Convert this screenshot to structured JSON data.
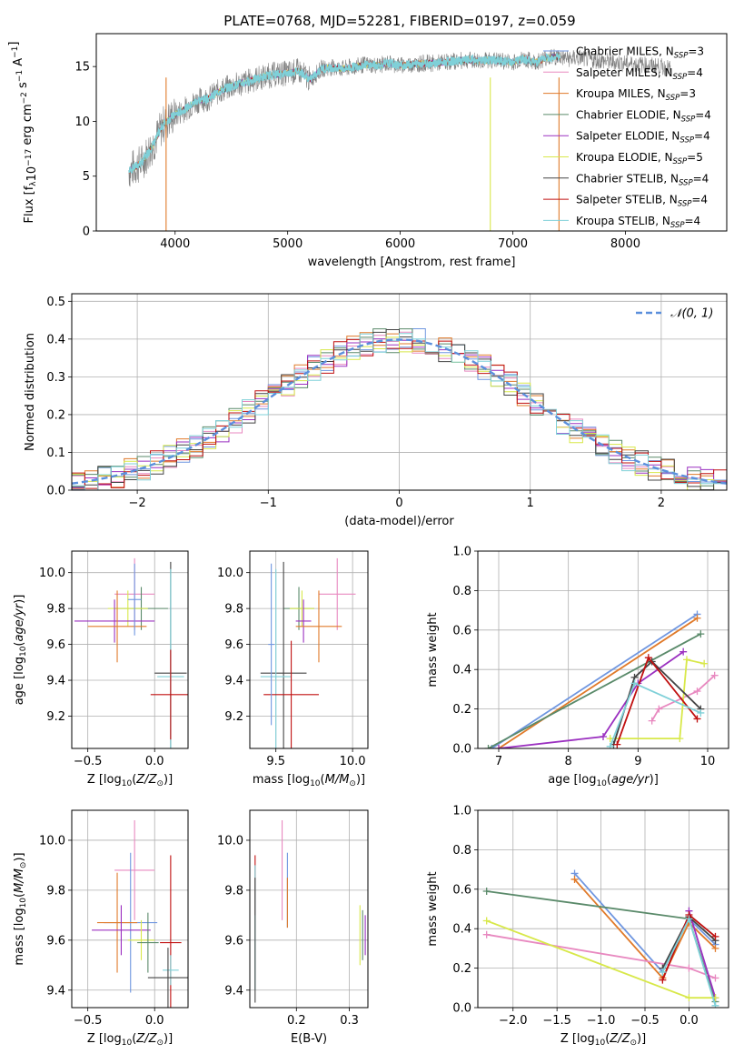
{
  "figure": {
    "title": "PLATE=0768, MJD=52281, FIBERID=0197, z=0.059"
  },
  "models": [
    {
      "name": "Chabrier MILES, N",
      "sub": "SSP",
      "suffix": "=3",
      "color": "#6f96e0"
    },
    {
      "name": "Salpeter MILES, N",
      "sub": "SSP",
      "suffix": "=4",
      "color": "#e889c0"
    },
    {
      "name": "Kroupa MILES, N",
      "sub": "SSP",
      "suffix": "=3",
      "color": "#e07a2a"
    },
    {
      "name": "Chabrier ELODIE, N",
      "sub": "SSP",
      "suffix": "=4",
      "color": "#5a8a6a"
    },
    {
      "name": "Salpeter ELODIE, N",
      "sub": "SSP",
      "suffix": "=4",
      "color": "#9b30c0"
    },
    {
      "name": "Kroupa ELODIE, N",
      "sub": "SSP",
      "suffix": "=5",
      "color": "#d8e84a"
    },
    {
      "name": "Chabrier STELIB, N",
      "sub": "SSP",
      "suffix": "=4",
      "color": "#444444"
    },
    {
      "name": "Salpeter STELIB, N",
      "sub": "SSP",
      "suffix": "=4",
      "color": "#c01010"
    },
    {
      "name": "Kroupa STELIB, N",
      "sub": "SSP",
      "suffix": "=4",
      "color": "#7fd0d8"
    }
  ],
  "chart_data": [
    {
      "id": "spectrum",
      "type": "line",
      "xlabel": "wavelength [Angstrom, rest frame]",
      "ylabel": "Flux [f_λ10^-17 erg cm^-2 s^-1 A^-1]",
      "xlim": [
        3300,
        8900
      ],
      "ylim": [
        0,
        18
      ],
      "xticks": [
        4000,
        5000,
        6000,
        7000,
        8000
      ],
      "yticks": [
        0,
        5,
        10,
        15
      ],
      "grid": false,
      "legend": "right",
      "observed_color": "#808080",
      "model_color": "#7fd0d8",
      "continuum": [
        [
          3590,
          5.5
        ],
        [
          3700,
          6.2
        ],
        [
          3800,
          7.8
        ],
        [
          3900,
          9.8
        ],
        [
          4000,
          10.6
        ],
        [
          4100,
          11.2
        ],
        [
          4200,
          11.9
        ],
        [
          4300,
          12.1
        ],
        [
          4400,
          12.8
        ],
        [
          4500,
          13.2
        ],
        [
          4600,
          13.5
        ],
        [
          4700,
          13.8
        ],
        [
          4800,
          14.1
        ],
        [
          4900,
          14.3
        ],
        [
          5000,
          14.4
        ],
        [
          5100,
          14.6
        ],
        [
          5200,
          13.8
        ],
        [
          5300,
          14.8
        ],
        [
          5400,
          14.9
        ],
        [
          5500,
          14.8
        ],
        [
          5600,
          15.0
        ],
        [
          5700,
          15.2
        ],
        [
          5800,
          15.1
        ],
        [
          5900,
          15.3
        ],
        [
          6000,
          15.1
        ],
        [
          6100,
          15.2
        ],
        [
          6200,
          15.3
        ],
        [
          6300,
          15.3
        ],
        [
          6400,
          15.4
        ],
        [
          6500,
          15.5
        ],
        [
          6600,
          15.6
        ],
        [
          6700,
          15.5
        ],
        [
          6800,
          15.6
        ],
        [
          6900,
          15.5
        ],
        [
          7000,
          15.4
        ],
        [
          7100,
          15.7
        ],
        [
          7200,
          15.4
        ],
        [
          7300,
          15.8
        ],
        [
          7400,
          15.9
        ],
        [
          7500,
          15.7
        ],
        [
          7600,
          15.8
        ],
        [
          7700,
          15.6
        ],
        [
          7800,
          15.5
        ],
        [
          7900,
          15.4
        ],
        [
          8000,
          15.3
        ],
        [
          8100,
          15.2
        ],
        [
          8200,
          15.1
        ],
        [
          8300,
          15.0
        ],
        [
          8400,
          14.8
        ]
      ],
      "model_range": [
        3590,
        7420
      ],
      "dropouts": [
        {
          "x": 3920,
          "color": "#e07a2a"
        },
        {
          "x": 6800,
          "color": "#d8e84a"
        },
        {
          "x": 7410,
          "color": "#e07a2a"
        }
      ]
    },
    {
      "id": "residuals",
      "type": "bar",
      "xlabel": "(data-model)/error",
      "ylabel": "Normed distribution",
      "xlim": [
        -2.5,
        2.5
      ],
      "ylim": [
        0,
        0.52
      ],
      "xticks": [
        -2,
        -1,
        0,
        1,
        2
      ],
      "yticks": [
        0.0,
        0.1,
        0.2,
        0.3,
        0.4,
        0.5
      ],
      "grid": true,
      "legend": "top-right",
      "reference_label": "N(0,1)",
      "reference_color": "#5b8fdc",
      "bin_width": 0.1,
      "bin_start": -2.5
    },
    {
      "id": "age-vs-Z",
      "type": "scatter",
      "xlabel": "Z [log10(Z/Z⊙)]",
      "ylabel": "age  [log10(age/yr)]",
      "xlim": [
        -0.62,
        0.25
      ],
      "ylim": [
        9.02,
        10.12
      ],
      "xticks": [
        -0.5,
        0.0
      ],
      "yticks": [
        9.2,
        9.4,
        9.6,
        9.8,
        10.0
      ],
      "grid": true,
      "points": [
        {
          "model": 1,
          "x": -0.15,
          "y": 9.88,
          "xerr": 0.15,
          "yerr": 0.2
        },
        {
          "model": 3,
          "x": -0.1,
          "y": 9.8,
          "xerr": 0.2,
          "yerr": 0.12
        },
        {
          "model": 5,
          "x": -0.2,
          "y": 9.8,
          "xerr": 0.15,
          "yerr": 0.1
        },
        {
          "model": 4,
          "x": -0.3,
          "y": 9.73,
          "xerr": 0.3,
          "yerr": 0.12
        },
        {
          "model": 2,
          "x": -0.28,
          "y": 9.7,
          "xerr": 0.22,
          "yerr": 0.2
        },
        {
          "model": 0,
          "x": -0.15,
          "y": 9.85,
          "xerr": 0.05,
          "yerr": 0.2
        },
        {
          "model": 6,
          "x": 0.12,
          "y": 9.44,
          "xerr": 0.12,
          "yerr": 0.62
        },
        {
          "model": 8,
          "x": 0.12,
          "y": 9.42,
          "xerr": 0.1,
          "yerr": 0.6
        },
        {
          "model": 7,
          "x": 0.12,
          "y": 9.32,
          "xerr": 0.15,
          "yerr": 0.25
        }
      ]
    },
    {
      "id": "age-vs-mass",
      "type": "scatter",
      "xlabel": "mass [log10(M/M⊙)]",
      "ylabel": "",
      "xlim": [
        9.33,
        10.1
      ],
      "ylim": [
        9.02,
        10.12
      ],
      "xticks": [
        9.5,
        10.0
      ],
      "yticks": [
        9.2,
        9.4,
        9.6,
        9.8,
        10.0
      ],
      "grid": true,
      "points": [
        {
          "model": 1,
          "x": 9.9,
          "y": 9.88,
          "xerr": 0.12,
          "yerr": 0.2
        },
        {
          "model": 3,
          "x": 9.65,
          "y": 9.8,
          "xerr": 0.1,
          "yerr": 0.12
        },
        {
          "model": 5,
          "x": 9.67,
          "y": 9.8,
          "xerr": 0.08,
          "yerr": 0.1
        },
        {
          "model": 4,
          "x": 9.68,
          "y": 9.73,
          "xerr": 0.05,
          "yerr": 0.12
        },
        {
          "model": 2,
          "x": 9.78,
          "y": 9.7,
          "xerr": 0.15,
          "yerr": 0.2
        },
        {
          "model": 6,
          "x": 9.55,
          "y": 9.44,
          "xerr": 0.15,
          "yerr": 0.62
        },
        {
          "model": 8,
          "x": 9.5,
          "y": 9.42,
          "xerr": 0.1,
          "yerr": 0.6
        },
        {
          "model": 7,
          "x": 9.6,
          "y": 9.32,
          "xerr": 0.18,
          "yerr": 0.3
        },
        {
          "model": 0,
          "x": 9.47,
          "y": 9.6,
          "xerr": 0.02,
          "yerr": 0.45
        }
      ]
    },
    {
      "id": "massweight-vs-age",
      "type": "line",
      "xlabel": "age  [log10(age/yr)]",
      "ylabel": "mass weight",
      "xlim": [
        6.7,
        10.3
      ],
      "ylim": [
        0.0,
        1.0
      ],
      "xticks": [
        7,
        8,
        9,
        10
      ],
      "yticks": [
        0.0,
        0.2,
        0.4,
        0.6,
        0.8,
        1.0
      ],
      "grid": true,
      "series": [
        {
          "model": 0,
          "points": [
            [
              6.9,
              0.0
            ],
            [
              9.85,
              0.68
            ]
          ]
        },
        {
          "model": 2,
          "points": [
            [
              7.0,
              0.0
            ],
            [
              9.85,
              0.66
            ]
          ]
        },
        {
          "model": 3,
          "points": [
            [
              6.85,
              0.0
            ],
            [
              9.9,
              0.58
            ]
          ]
        },
        {
          "model": 1,
          "points": [
            [
              9.2,
              0.14
            ],
            [
              9.3,
              0.2
            ],
            [
              9.85,
              0.29
            ],
            [
              10.1,
              0.37
            ]
          ]
        },
        {
          "model": 4,
          "points": [
            [
              7.0,
              0.0
            ],
            [
              8.5,
              0.06
            ],
            [
              9.0,
              0.33
            ],
            [
              9.65,
              0.49
            ]
          ]
        },
        {
          "model": 5,
          "points": [
            [
              8.6,
              0.05
            ],
            [
              9.6,
              0.05
            ],
            [
              9.7,
              0.45
            ],
            [
              9.95,
              0.43
            ]
          ]
        },
        {
          "model": 6,
          "points": [
            [
              8.65,
              0.02
            ],
            [
              8.95,
              0.36
            ],
            [
              9.2,
              0.44
            ],
            [
              9.9,
              0.2
            ]
          ]
        },
        {
          "model": 7,
          "points": [
            [
              8.7,
              0.02
            ],
            [
              9.15,
              0.46
            ],
            [
              9.85,
              0.15
            ]
          ]
        },
        {
          "model": 8,
          "points": [
            [
              8.6,
              0.01
            ],
            [
              8.95,
              0.33
            ],
            [
              9.9,
              0.18
            ]
          ]
        }
      ]
    },
    {
      "id": "mass-vs-Z",
      "type": "scatter",
      "xlabel": "Z [log10(Z/Z⊙)]",
      "ylabel": "mass [log10(M/M⊙)]",
      "xlim": [
        -0.62,
        0.25
      ],
      "ylim": [
        9.33,
        10.12
      ],
      "xticks": [
        -0.5,
        0.0
      ],
      "yticks": [
        9.4,
        9.6,
        9.8,
        10.0
      ],
      "grid": true,
      "points": [
        {
          "model": 1,
          "x": -0.15,
          "y": 9.88,
          "xerr": 0.15,
          "yerr": 0.2
        },
        {
          "model": 0,
          "x": -0.18,
          "y": 9.67,
          "xerr": 0.2,
          "yerr": 0.28
        },
        {
          "model": 2,
          "x": -0.28,
          "y": 9.67,
          "xerr": 0.15,
          "yerr": 0.2
        },
        {
          "model": 4,
          "x": -0.25,
          "y": 9.64,
          "xerr": 0.22,
          "yerr": 0.1
        },
        {
          "model": 5,
          "x": -0.1,
          "y": 9.6,
          "xerr": 0.1,
          "yerr": 0.08
        },
        {
          "model": 3,
          "x": -0.05,
          "y": 9.59,
          "xerr": 0.08,
          "yerr": 0.12
        },
        {
          "model": 7,
          "x": 0.12,
          "y": 9.59,
          "xerr": 0.08,
          "yerr": 0.35
        },
        {
          "model": 8,
          "x": 0.12,
          "y": 9.48,
          "xerr": 0.06,
          "yerr": 0.06
        },
        {
          "model": 6,
          "x": 0.1,
          "y": 9.45,
          "xerr": 0.15,
          "yerr": 0.12
        }
      ]
    },
    {
      "id": "mass-vs-ebv",
      "type": "scatter",
      "xlabel": "E(B-V)",
      "ylabel": "",
      "xlim": [
        0.112,
        0.335
      ],
      "ylim": [
        9.33,
        10.12
      ],
      "xticks": [
        0.2,
        0.3
      ],
      "yticks": [
        9.4,
        9.6,
        9.8,
        10.0
      ],
      "grid": true,
      "points": [
        {
          "model": 1,
          "x": 0.173,
          "y": 9.88,
          "xerr": 0.0,
          "yerr": 0.2
        },
        {
          "model": 0,
          "x": 0.183,
          "y": 9.8,
          "xerr": 0.0,
          "yerr": 0.15
        },
        {
          "model": 2,
          "x": 0.183,
          "y": 9.75,
          "xerr": 0.0,
          "yerr": 0.1
        },
        {
          "model": 7,
          "x": 0.122,
          "y": 9.82,
          "xerr": 0.0,
          "yerr": 0.12
        },
        {
          "model": 8,
          "x": 0.122,
          "y": 9.65,
          "xerr": 0.0,
          "yerr": 0.25
        },
        {
          "model": 6,
          "x": 0.122,
          "y": 9.6,
          "xerr": 0.0,
          "yerr": 0.25
        },
        {
          "model": 5,
          "x": 0.32,
          "y": 9.62,
          "xerr": 0.0,
          "yerr": 0.12
        },
        {
          "model": 3,
          "x": 0.325,
          "y": 9.62,
          "xerr": 0.0,
          "yerr": 0.1
        },
        {
          "model": 4,
          "x": 0.33,
          "y": 9.62,
          "xerr": 0.0,
          "yerr": 0.08
        }
      ]
    },
    {
      "id": "massweight-vs-Z",
      "type": "line",
      "xlabel": "Z [log10(Z/Z⊙)]",
      "ylabel": "mass weight",
      "xlim": [
        -2.4,
        0.45
      ],
      "ylim": [
        0.0,
        1.0
      ],
      "xticks": [
        -2.0,
        -1.5,
        -1.0,
        -0.5,
        0.0
      ],
      "yticks": [
        0.0,
        0.2,
        0.4,
        0.6,
        0.8,
        1.0
      ],
      "grid": true,
      "series": [
        {
          "model": 0,
          "points": [
            [
              -1.3,
              0.68
            ],
            [
              -0.3,
              0.18
            ],
            [
              0.0,
              0.45
            ],
            [
              0.3,
              0.32
            ]
          ]
        },
        {
          "model": 2,
          "points": [
            [
              -1.3,
              0.65
            ],
            [
              -0.3,
              0.15
            ],
            [
              0.0,
              0.43
            ],
            [
              0.3,
              0.3
            ]
          ]
        },
        {
          "model": 3,
          "points": [
            [
              -2.3,
              0.59
            ],
            [
              0.0,
              0.45
            ],
            [
              0.3,
              0.03
            ]
          ]
        },
        {
          "model": 1,
          "points": [
            [
              -2.3,
              0.37
            ],
            [
              0.0,
              0.2
            ],
            [
              0.3,
              0.15
            ]
          ]
        },
        {
          "model": 4,
          "points": [
            [
              0.0,
              0.49
            ],
            [
              0.3,
              0.05
            ]
          ]
        },
        {
          "model": 5,
          "points": [
            [
              -2.3,
              0.44
            ],
            [
              0.0,
              0.05
            ],
            [
              0.3,
              0.05
            ]
          ]
        },
        {
          "model": 6,
          "points": [
            [
              -0.3,
              0.2
            ],
            [
              0.0,
              0.46
            ],
            [
              0.3,
              0.34
            ]
          ]
        },
        {
          "model": 7,
          "points": [
            [
              -0.3,
              0.14
            ],
            [
              0.0,
              0.47
            ],
            [
              0.3,
              0.36
            ]
          ]
        },
        {
          "model": 8,
          "points": [
            [
              -0.3,
              0.18
            ],
            [
              0.0,
              0.45
            ],
            [
              0.3,
              0.01
            ]
          ]
        }
      ]
    }
  ]
}
